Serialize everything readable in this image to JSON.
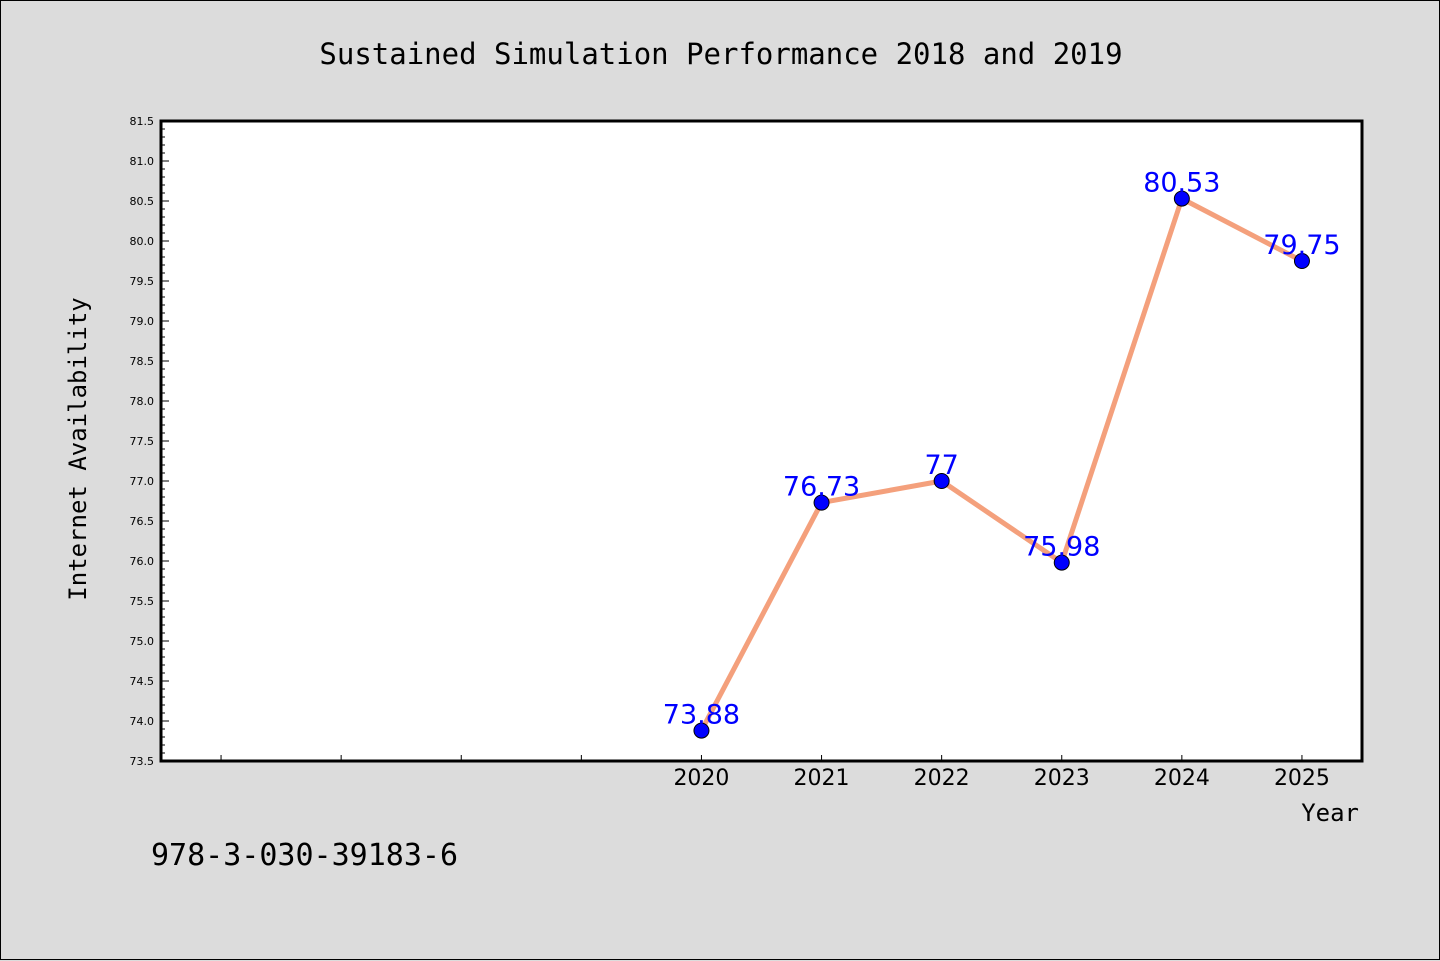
{
  "footer_code": "978-3-030-39183-6",
  "colors": {
    "background": "#dcdcdc",
    "plot_background": "#ffffff",
    "line": "#f4a07c",
    "marker": "#0000ff",
    "data_label": "#0000ff"
  },
  "chart_data": {
    "type": "line",
    "title": "Sustained Simulation Performance 2018 and 2019",
    "xlabel": "Year",
    "ylabel": "Internet Availability",
    "x": [
      2020,
      2021,
      2022,
      2023,
      2024,
      2025
    ],
    "xlim": [
      2015.5,
      2025.5
    ],
    "ylim": [
      73.5,
      81.5
    ],
    "y_ticks": [
      73.5,
      74.0,
      74.5,
      75.0,
      75.5,
      76.0,
      76.5,
      77.0,
      77.5,
      78.0,
      78.5,
      79.0,
      79.5,
      80.0,
      80.5,
      81.0,
      81.5
    ],
    "y_tick_labels": [
      "73.5",
      "74.0",
      "74.5",
      "75.0",
      "75.5",
      "76.0",
      "76.5",
      "77.0",
      "77.5",
      "78.0",
      "78.5",
      "79.0",
      "79.5",
      "80.0",
      "80.5",
      "81.0",
      "81.5"
    ],
    "x_ticks_unlabeled": [
      2016,
      2017,
      2018,
      2019
    ],
    "x_tick_labels": [
      "2020",
      "2021",
      "2022",
      "2023",
      "2024",
      "2025"
    ],
    "series": [
      {
        "values": [
          73.88,
          76.73,
          77,
          75.98,
          80.53,
          79.75
        ],
        "labels": [
          "73.88",
          "76.73",
          "77",
          "75.98",
          "80.53",
          "79.75"
        ]
      }
    ],
    "grid": false,
    "legend": "none"
  }
}
